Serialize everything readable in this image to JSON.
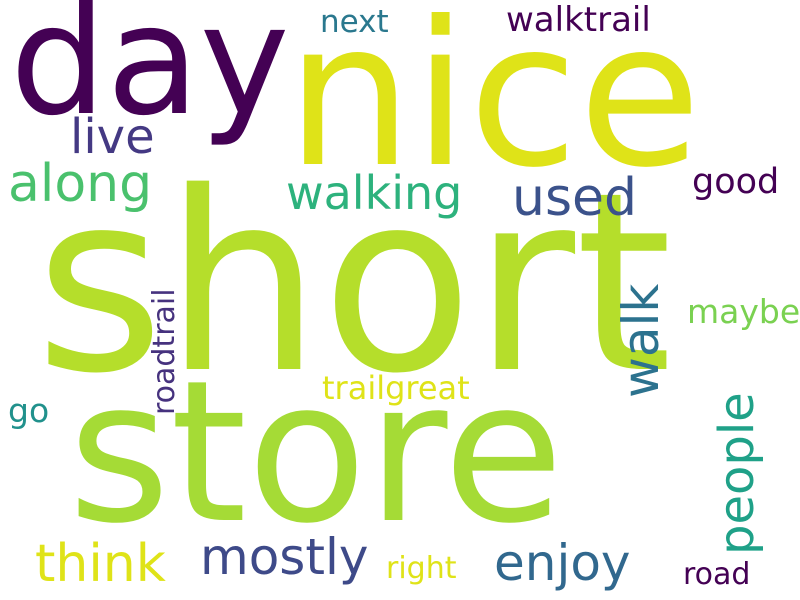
{
  "words": {
    "short": {
      "text": "short",
      "color": "#b5de2b"
    },
    "store": {
      "text": "store",
      "color": "#a5db36"
    },
    "nice": {
      "text": "nice",
      "color": "#dfe318"
    },
    "day": {
      "text": "day",
      "color": "#440154"
    },
    "along": {
      "text": "along",
      "color": "#4ac16d"
    },
    "live": {
      "text": "live",
      "color": "#443983"
    },
    "walking": {
      "text": "walking",
      "color": "#2db27d"
    },
    "used": {
      "text": "used",
      "color": "#3b528b"
    },
    "walktrail": {
      "text": "walktrail",
      "color": "#440154"
    },
    "next": {
      "text": "next",
      "color": "#2a788e"
    },
    "good": {
      "text": "good",
      "color": "#440154"
    },
    "walk": {
      "text": "walk",
      "color": "#2c728e"
    },
    "maybe": {
      "text": "maybe",
      "color": "#7ad151"
    },
    "people": {
      "text": "people",
      "color": "#1fa188"
    },
    "roadtrail": {
      "text": "roadtrail",
      "color": "#46327e"
    },
    "trailgreat": {
      "text": "trailgreat",
      "color": "#dfe318"
    },
    "go": {
      "text": "go",
      "color": "#21918c"
    },
    "think": {
      "text": "think",
      "color": "#dfe318"
    },
    "mostly": {
      "text": "mostly",
      "color": "#3e4a89"
    },
    "enjoy": {
      "text": "enjoy",
      "color": "#31688e"
    },
    "right": {
      "text": "right",
      "color": "#dfe318"
    },
    "road": {
      "text": "road",
      "color": "#440154"
    }
  }
}
